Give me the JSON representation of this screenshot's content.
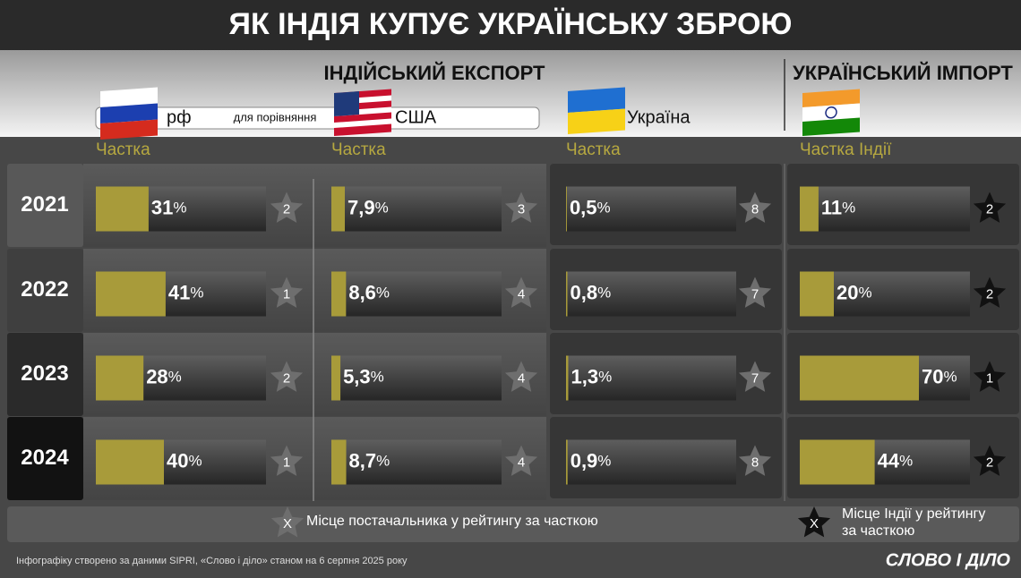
{
  "title": "ЯК ІНДІЯ КУПУЄ УКРАЇНСЬКУ ЗБРОЮ",
  "sections": {
    "export": "ІНДІЙСЬКИЙ ЕКСПОРТ",
    "import": "УКРАЇНСЬКИЙ ІМПОРТ"
  },
  "comparison_label": "для порівняння",
  "unit": "%",
  "scale": [
    0,
    100
  ],
  "years": [
    "2021",
    "2022",
    "2023",
    "2024"
  ],
  "columns": [
    {
      "country": "рф",
      "header": "Частка",
      "shares": [
        31,
        41,
        28,
        40
      ],
      "share_labels": [
        "31",
        "41",
        "28",
        "40"
      ],
      "ranks": [
        2,
        1,
        2,
        1
      ],
      "star": "#6e6e6e"
    },
    {
      "country": "США",
      "header": "Частка",
      "shares": [
        7.9,
        8.6,
        5.3,
        8.7
      ],
      "share_labels": [
        "7,9",
        "8,6",
        "5,3",
        "8,7"
      ],
      "ranks": [
        3,
        4,
        4,
        4
      ],
      "star": "#6e6e6e"
    },
    {
      "country": "Україна",
      "header": "Частка",
      "shares": [
        0.5,
        0.8,
        1.3,
        0.9
      ],
      "share_labels": [
        "0,5",
        "0,8",
        "1,3",
        "0,9"
      ],
      "ranks": [
        8,
        7,
        7,
        8
      ],
      "star": "#6e6e6e"
    },
    {
      "country": "",
      "header": "Частка Індії",
      "shares": [
        11,
        20,
        70,
        44
      ],
      "share_labels": [
        "11",
        "20",
        "70",
        "44"
      ],
      "ranks": [
        2,
        2,
        1,
        2
      ],
      "star": "#111111"
    }
  ],
  "legend": {
    "symbol": "X",
    "supplier": "Місце постачальника у рейтингу за часткою",
    "india": [
      "Місце Індії у рейтингу",
      "за часткою"
    ]
  },
  "footer": "Інфографіку створено за даними SIPRI, «Слово і діло» станом на 6 серпня 2025 року",
  "logo": "СЛОВО І ДІЛО"
}
